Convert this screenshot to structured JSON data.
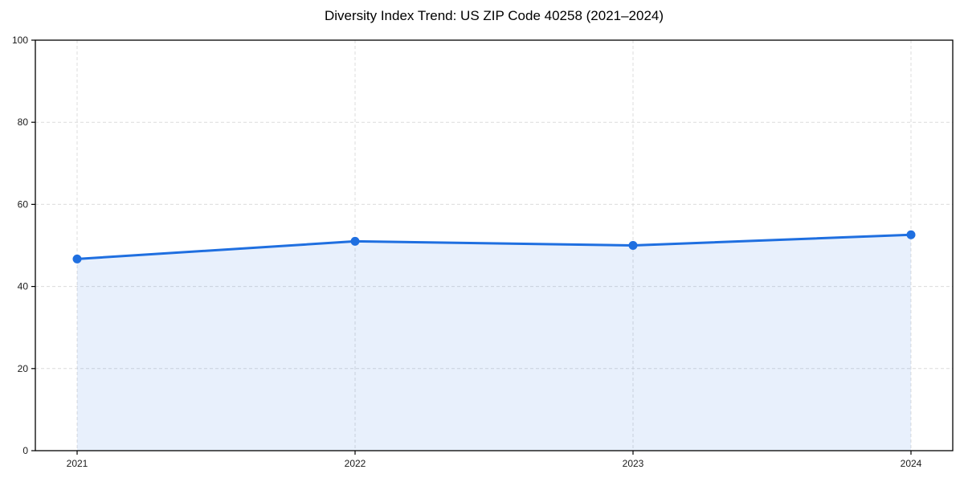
{
  "chart_data": {
    "type": "area",
    "title": "Diversity Index Trend: US ZIP Code 40258 (2021–2024)",
    "categories": [
      "2021",
      "2022",
      "2023",
      "2024"
    ],
    "values": [
      46.7,
      51,
      50,
      52.6
    ],
    "xlabel": "",
    "ylabel": "",
    "ylim": [
      0,
      100
    ],
    "yticks": [
      0,
      20,
      40,
      60,
      80,
      100
    ],
    "grid": true,
    "grid_style": "dashed",
    "legend": false,
    "marker": "circle",
    "colors": {
      "line": "#1f6fe0",
      "marker": "#1f6fe0",
      "fill": "rgba(31,111,224,0.10)",
      "grid": "#dcdcdc",
      "spine": "#000000",
      "tick_label": "#1a1a1a",
      "background": "#ffffff"
    }
  }
}
